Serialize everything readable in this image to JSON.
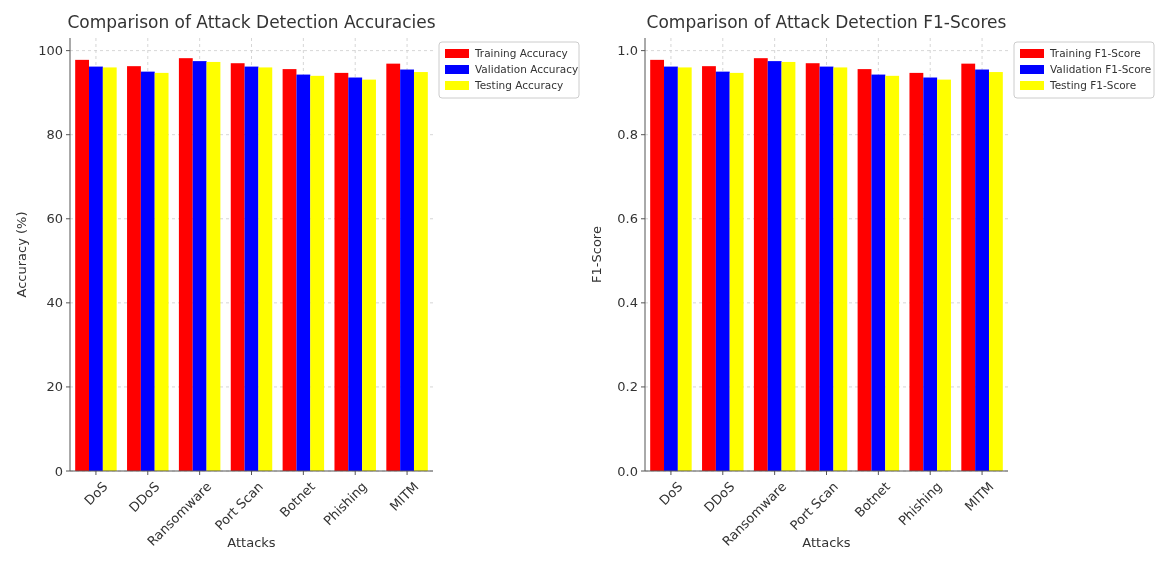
{
  "chart_data": [
    {
      "type": "bar",
      "title": "Comparison of Attack Detection Accuracies",
      "xlabel": "Attacks",
      "ylabel": "Accuracy (%)",
      "categories": [
        "DoS",
        "DDoS",
        "Ransomware",
        "Port Scan",
        "Botnet",
        "Phishing",
        "MITM"
      ],
      "series": [
        {
          "name": "Training Accuracy",
          "color": "#ff0000",
          "values": [
            97.8,
            96.3,
            98.2,
            97.0,
            95.6,
            94.7,
            96.9
          ]
        },
        {
          "name": "Validation Accuracy",
          "color": "#0000ff",
          "values": [
            96.2,
            95.0,
            97.5,
            96.2,
            94.3,
            93.6,
            95.5
          ]
        },
        {
          "name": "Testing Accuracy",
          "color": "#ffff00",
          "values": [
            96.0,
            94.7,
            97.3,
            96.0,
            94.0,
            93.1,
            94.9
          ]
        }
      ],
      "ylim": [
        0,
        103
      ],
      "yticks": [
        0,
        20,
        40,
        60,
        80,
        100
      ],
      "grid": true,
      "legend": "top right"
    },
    {
      "type": "bar",
      "title": "Comparison of Attack Detection F1-Scores",
      "xlabel": "Attacks",
      "ylabel": "F1-Score",
      "categories": [
        "DoS",
        "DDoS",
        "Ransomware",
        "Port Scan",
        "Botnet",
        "Phishing",
        "MITM"
      ],
      "series": [
        {
          "name": "Training F1-Score",
          "color": "#ff0000",
          "values": [
            0.978,
            0.963,
            0.982,
            0.97,
            0.956,
            0.947,
            0.969
          ]
        },
        {
          "name": "Validation F1-Score",
          "color": "#0000ff",
          "values": [
            0.962,
            0.95,
            0.975,
            0.962,
            0.943,
            0.936,
            0.955
          ]
        },
        {
          "name": "Testing F1-Score",
          "color": "#ffff00",
          "values": [
            0.96,
            0.947,
            0.973,
            0.96,
            0.94,
            0.931,
            0.949
          ]
        }
      ],
      "ylim": [
        0,
        1.03
      ],
      "yticks": [
        {
          "value": 0,
          "label": "0.0"
        },
        {
          "value": 0.2,
          "label": "0.2"
        },
        {
          "value": 0.4,
          "label": "0.4"
        },
        {
          "value": 0.6,
          "label": "0.6"
        },
        {
          "value": 0.8,
          "label": "0.8"
        },
        {
          "value": 1,
          "label": "1.0"
        }
      ],
      "grid": true,
      "legend": "top right"
    }
  ]
}
